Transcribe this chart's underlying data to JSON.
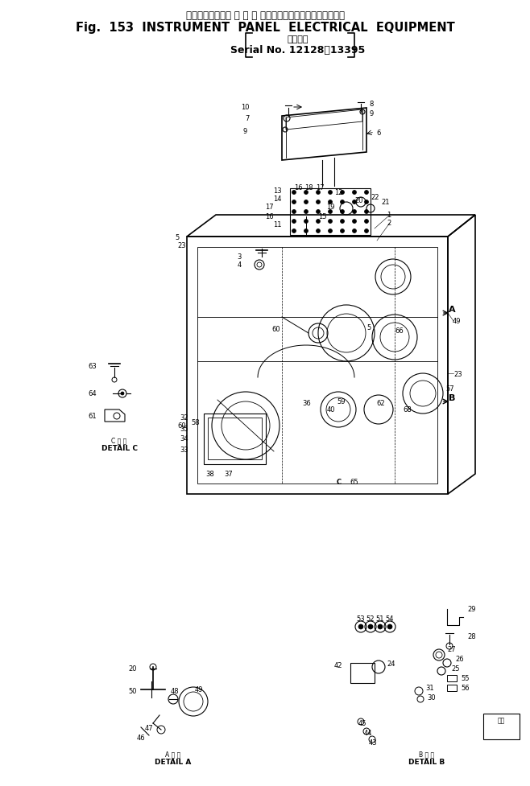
{
  "title_jp": "インスツルメント パ ネ ル エレクトリカルイクイップメント",
  "title_en": "Fig.  153  INSTRUMENT  PANEL  ELECTRICAL  EQUIPMENT",
  "subtitle_jp": "適用号機",
  "subtitle_serial": "Serial No. 12128～13395",
  "bg_color": "#ffffff",
  "fig_width": 6.58,
  "fig_height": 9.78,
  "dpi": 100
}
